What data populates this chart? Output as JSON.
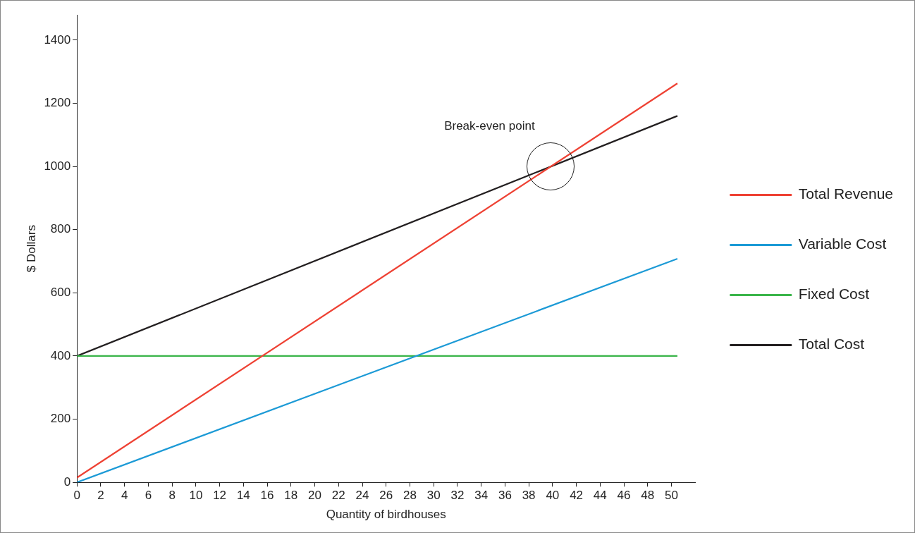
{
  "chart_data": {
    "type": "line",
    "xlabel": "Quantity of birdhouses",
    "ylabel": "$ Dollars",
    "xlim": [
      0,
      52
    ],
    "xticks": [
      0,
      2,
      4,
      6,
      8,
      10,
      12,
      14,
      16,
      18,
      20,
      22,
      24,
      26,
      28,
      30,
      32,
      34,
      36,
      38,
      40,
      42,
      44,
      46,
      48,
      50
    ],
    "ylim": [
      0,
      1480
    ],
    "yticks": [
      0,
      200,
      400,
      600,
      800,
      1000,
      1200,
      1400
    ],
    "x": [
      0,
      50.5
    ],
    "series": [
      {
        "name": "Total Revenue",
        "color": "#ee4133",
        "values": [
          15,
          1263
        ]
      },
      {
        "name": "Variable Cost",
        "color": "#1c9ad6",
        "values": [
          0,
          708
        ]
      },
      {
        "name": "Fixed Cost",
        "color": "#3ab54a",
        "values": [
          400,
          400
        ]
      },
      {
        "name": "Total Cost",
        "color": "#231f20",
        "values": [
          400,
          1160
        ]
      }
    ],
    "annotations": [
      "Break-even point"
    ],
    "grid": false,
    "legend": "right",
    "marker": "none",
    "line_style": "solid"
  }
}
